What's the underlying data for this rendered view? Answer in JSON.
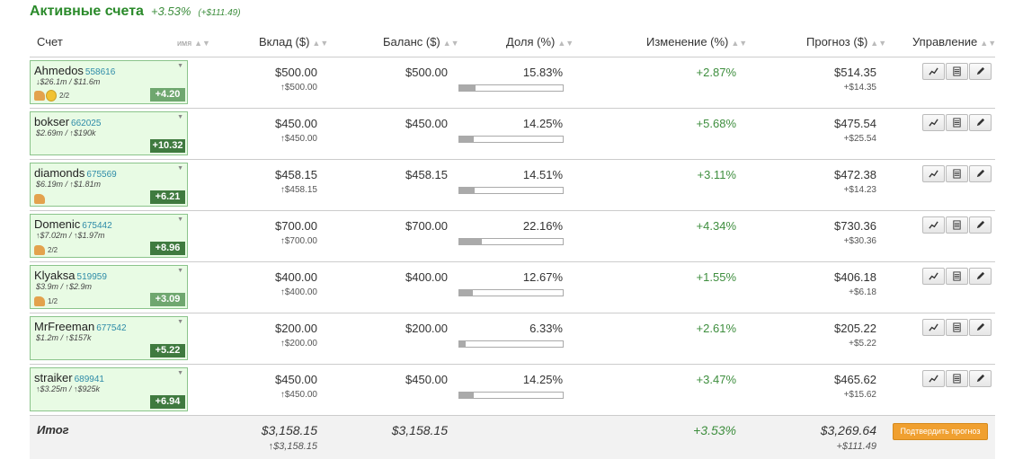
{
  "title": {
    "label": "Активные счета",
    "change": "+3.53%",
    "change_abs": "(+$111.49)"
  },
  "headers": {
    "account": "Счет",
    "name_sort": "имя",
    "deposit": "Вклад ($)",
    "balance": "Баланс ($)",
    "share": "Доля (%)",
    "change": "Изменение (%)",
    "forecast": "Прогноз ($)",
    "manage": "Управление"
  },
  "icons": {
    "sort": "sort-arrows-icon",
    "chart": "chart-icon",
    "table": "table-icon",
    "edit": "pencil-icon"
  },
  "rows": [
    {
      "name": "Ahmedos",
      "id": "558616",
      "sub": "↓$26.1m / $11.6m",
      "badges": [
        "thumb",
        "medal"
      ],
      "frac": "2/2",
      "score": "+4.20",
      "score_style": "light",
      "deposit": "$500.00",
      "deposit_sub": "↑$500.00",
      "balance": "$500.00",
      "share": "15.83%",
      "share_val": 15.83,
      "change": "+2.87%",
      "forecast": "$514.35",
      "forecast_sub": "+$14.35"
    },
    {
      "name": "bokser",
      "id": "662025",
      "sub": "$2.69m / ↑$190k",
      "badges": [],
      "frac": "",
      "score": "+10.32",
      "score_style": "dark",
      "deposit": "$450.00",
      "deposit_sub": "↑$450.00",
      "balance": "$450.00",
      "share": "14.25%",
      "share_val": 14.25,
      "change": "+5.68%",
      "forecast": "$475.54",
      "forecast_sub": "+$25.54"
    },
    {
      "name": "diamonds",
      "id": "675569",
      "sub": "$6.19m / ↑$1.81m",
      "badges": [
        "thumb"
      ],
      "frac": "",
      "score": "+6.21",
      "score_style": "dark",
      "deposit": "$458.15",
      "deposit_sub": "↑$458.15",
      "balance": "$458.15",
      "share": "14.51%",
      "share_val": 14.51,
      "change": "+3.11%",
      "forecast": "$472.38",
      "forecast_sub": "+$14.23"
    },
    {
      "name": "Domenic",
      "id": "675442",
      "sub": "↑$7.02m / ↑$1.97m",
      "badges": [
        "thumb"
      ],
      "frac": "2/2",
      "score": "+8.96",
      "score_style": "dark",
      "deposit": "$700.00",
      "deposit_sub": "↑$700.00",
      "balance": "$700.00",
      "share": "22.16%",
      "share_val": 22.16,
      "change": "+4.34%",
      "forecast": "$730.36",
      "forecast_sub": "+$30.36"
    },
    {
      "name": "Klyaksa",
      "id": "519959",
      "sub": "$3.9m / ↑$2.9m",
      "badges": [
        "thumb"
      ],
      "frac": "1/2",
      "score": "+3.09",
      "score_style": "light",
      "deposit": "$400.00",
      "deposit_sub": "↑$400.00",
      "balance": "$400.00",
      "share": "12.67%",
      "share_val": 12.67,
      "change": "+1.55%",
      "forecast": "$406.18",
      "forecast_sub": "+$6.18"
    },
    {
      "name": "MrFreeman",
      "id": "677542",
      "sub": "$1.2m / ↑$157k",
      "badges": [],
      "frac": "",
      "score": "+5.22",
      "score_style": "dark",
      "deposit": "$200.00",
      "deposit_sub": "↑$200.00",
      "balance": "$200.00",
      "share": "6.33%",
      "share_val": 6.33,
      "change": "+2.61%",
      "forecast": "$205.22",
      "forecast_sub": "+$5.22"
    },
    {
      "name": "straiker",
      "id": "689941",
      "sub": "↑$3.25m / ↑$925k",
      "badges": [],
      "frac": "",
      "score": "+6.94",
      "score_style": "dark",
      "deposit": "$450.00",
      "deposit_sub": "↑$450.00",
      "balance": "$450.00",
      "share": "14.25%",
      "share_val": 14.25,
      "change": "+3.47%",
      "forecast": "$465.62",
      "forecast_sub": "+$15.62"
    }
  ],
  "total": {
    "label": "Итог",
    "deposit": "$3,158.15",
    "deposit_sub": "↑$3,158.15",
    "balance": "$3,158.15",
    "change": "+3.53%",
    "forecast": "$3,269.64",
    "forecast_sub": "+$111.49",
    "confirm": "Подтвердить прогноз"
  }
}
